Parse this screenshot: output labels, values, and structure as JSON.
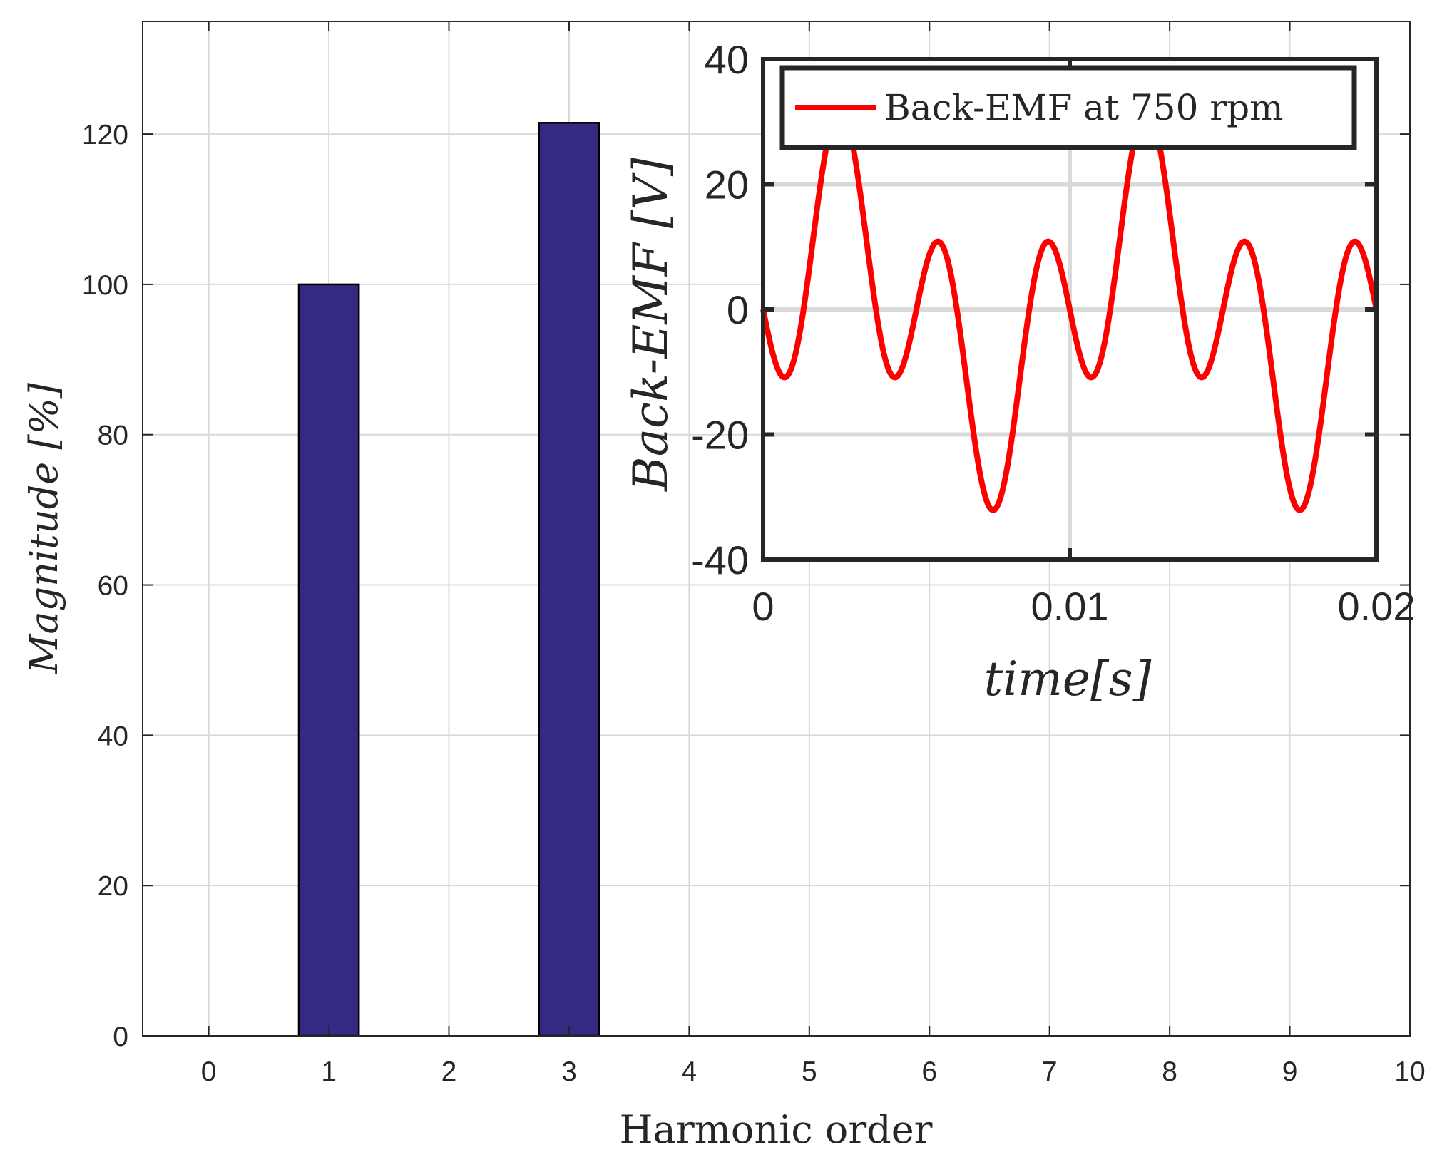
{
  "chart_data": [
    {
      "type": "bar",
      "panel": "main",
      "categories": [
        0,
        1,
        2,
        3,
        4,
        5,
        6,
        7,
        8,
        9,
        10
      ],
      "x": [
        1,
        3
      ],
      "values": [
        100,
        121.5
      ],
      "bar_color": "#342A82",
      "xlabel": "Harmonic order",
      "ylabel": "Magnitude [%]",
      "xlim": [
        -0.55,
        10
      ],
      "ylim": [
        0,
        135
      ],
      "xticks": [
        "0",
        "1",
        "2",
        "3",
        "4",
        "5",
        "6",
        "7",
        "8",
        "9",
        "10"
      ],
      "yticks": [
        "0",
        "20",
        "40",
        "60",
        "80",
        "100",
        "120"
      ],
      "grid": true
    },
    {
      "type": "line",
      "panel": "inset",
      "series": [
        {
          "name": "Back-EMF at 750 rpm",
          "color": "#FF0000",
          "fundamental_amplitude": 14.5,
          "third_harmonic_amplitude": 17.6,
          "period_s": 0.01
        }
      ],
      "xlabel": "time[s]",
      "ylabel": "Back-EMF [V]",
      "xlim": [
        0,
        0.02
      ],
      "ylim": [
        -40,
        40
      ],
      "xticks": [
        "0",
        "0.01",
        "0.02"
      ],
      "yticks": [
        "-40",
        "-20",
        "0",
        "20",
        "40"
      ],
      "grid": true,
      "legend": "top"
    }
  ]
}
